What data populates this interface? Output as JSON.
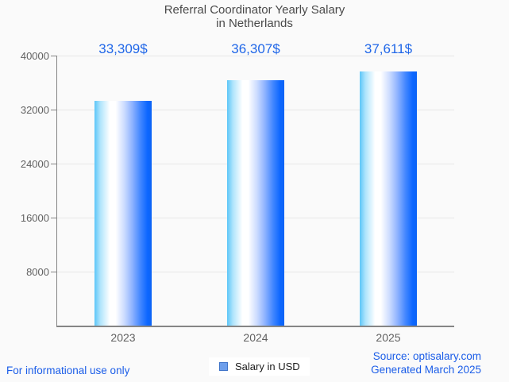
{
  "title": {
    "line1": "Referral Coordinator Yearly Salary",
    "line2": "in Netherlands"
  },
  "chart_data": {
    "type": "bar",
    "categories": [
      "2023",
      "2024",
      "2025"
    ],
    "series": [
      {
        "name": "Salary in USD",
        "values": [
          33309,
          36307,
          37611
        ]
      }
    ],
    "value_labels": [
      "33,309$",
      "36,307$",
      "37,611$"
    ],
    "title": "Referral Coordinator Yearly Salary in Netherlands",
    "xlabel": "",
    "ylabel": "",
    "ylim": [
      0,
      40000
    ],
    "yticks": [
      8000,
      16000,
      24000,
      32000,
      40000
    ],
    "grid": true,
    "legend_position": "bottom"
  },
  "legend": {
    "label": "Salary in USD",
    "marker_color": "#6d9eeb",
    "marker_border_color": "#3f74c9"
  },
  "footer": {
    "disclaimer": "For informational use only",
    "source": "Source: optisalary.com",
    "generated": "Generated March 2025"
  },
  "colors": {
    "background": "#fafafa",
    "title_text": "#4a4a4a",
    "axis_text": "#616161",
    "axis_line": "#858585",
    "gridline": "#e7e7e7",
    "value_label_text": "#2067e8",
    "footer_link_text": "#1b5de8",
    "bar_gradient_left": "#5cc6f8",
    "bar_gradient_mid": "#ffffff",
    "bar_gradient_right": "#0d64f5"
  }
}
